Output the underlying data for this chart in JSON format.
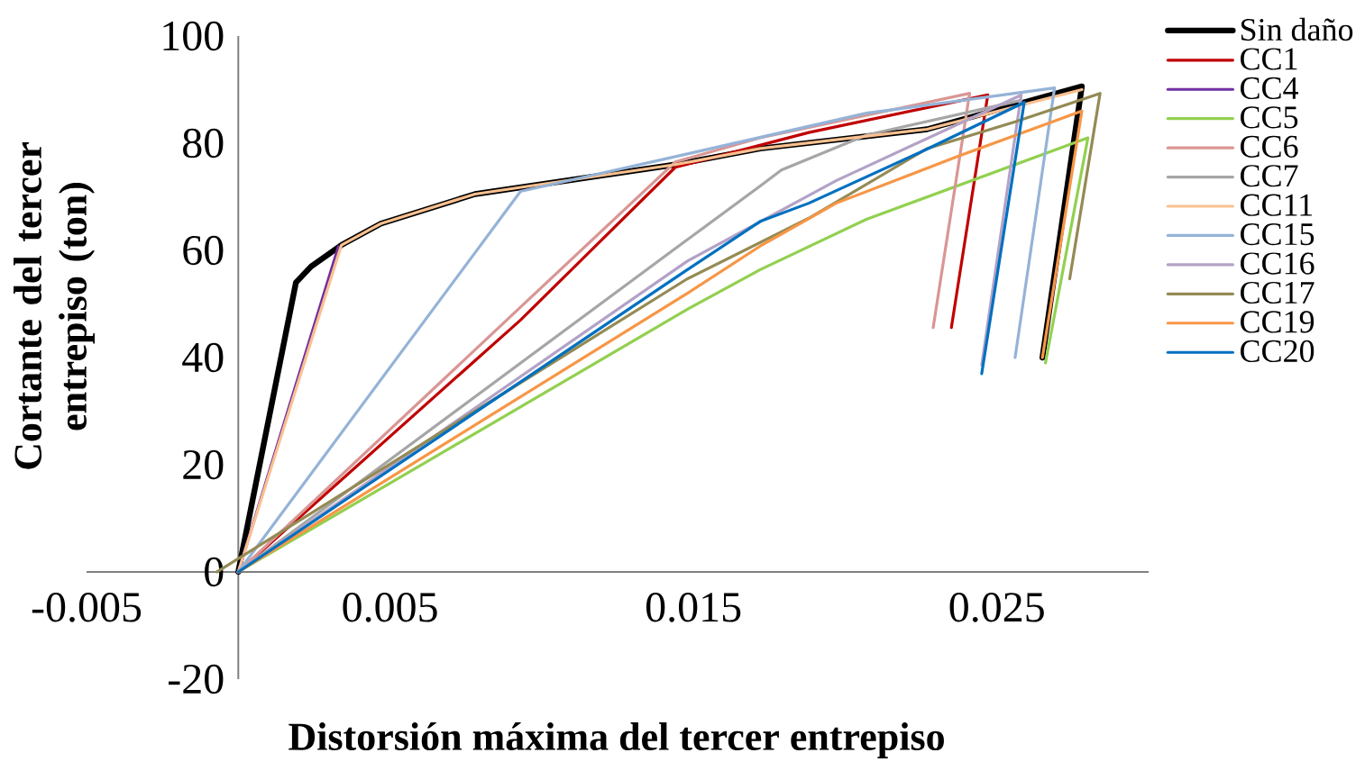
{
  "chart_data": {
    "type": "line",
    "xlabel": "Distorsión máxima del tercer entrepiso",
    "ylabel": "Cortante del tercer entrepiso (ton)",
    "xlim": [
      -0.005,
      0.03
    ],
    "ylim": [
      -20,
      100
    ],
    "xticks": [
      -0.005,
      0.005,
      0.015,
      0.025
    ],
    "yticks": [
      -20,
      0,
      20,
      40,
      60,
      80,
      100
    ],
    "legend": "right",
    "series": [
      {
        "name": "Sin daño",
        "color": "#000000",
        "x": [
          0,
          0.0019,
          0.0024,
          0.0034,
          0.0047,
          0.0078,
          0.0144,
          0.0172,
          0.0227,
          0.0278,
          0.0265
        ],
        "values": [
          0,
          54,
          57,
          61,
          65,
          70.5,
          76,
          79,
          82.6,
          90.6,
          40
        ]
      },
      {
        "name": "CC1",
        "color": "#c00000",
        "x": [
          0,
          0.0093,
          0.0144,
          0.0188,
          0.0247,
          0.0235
        ],
        "values": [
          0,
          47,
          75.5,
          82,
          89,
          45.6
        ]
      },
      {
        "name": "CC4",
        "color": "#7030a0",
        "x": [
          0,
          0.0033
        ],
        "values": [
          0,
          60.7
        ]
      },
      {
        "name": "CC5",
        "color": "#92d050",
        "x": [
          0,
          0.0148,
          0.0172,
          0.0207,
          0.028,
          0.0266
        ],
        "values": [
          0,
          49,
          56.4,
          65.8,
          81,
          39
        ]
      },
      {
        "name": "CC6",
        "color": "#d99694",
        "x": [
          0,
          0.0144,
          0.0172,
          0.0241,
          0.0229
        ],
        "values": [
          0,
          76.5,
          81,
          89.3,
          45.6
        ]
      },
      {
        "name": "CC7",
        "color": "#a6a6a6",
        "x": [
          0,
          0.0148,
          0.0172,
          0.0179,
          0.0207,
          0.0258
        ],
        "values": [
          0,
          62,
          72,
          75,
          81.5,
          88
        ]
      },
      {
        "name": "CC11",
        "color": "#fac090",
        "x": [
          0,
          0.0034,
          0.0047,
          0.0078,
          0.0144,
          0.0172,
          0.0227,
          0.0278
        ],
        "values": [
          0,
          61,
          65,
          70.5,
          76,
          79,
          82.6,
          90
        ]
      },
      {
        "name": "CC15",
        "color": "#95b3d7",
        "x": [
          0,
          0.0093,
          0.0148,
          0.0207,
          0.0269,
          0.0256
        ],
        "values": [
          0,
          71,
          78,
          85.6,
          90.3,
          40
        ]
      },
      {
        "name": "CC16",
        "color": "#b3a2c7",
        "x": [
          0,
          0.0148,
          0.0197,
          0.0258,
          0.0245
        ],
        "values": [
          0,
          58,
          73,
          89,
          38.6
        ]
      },
      {
        "name": "CC17",
        "color": "#948a54",
        "x": [
          -0.0007,
          0.0148,
          0.0188,
          0.0227,
          0.0256,
          0.0284,
          0.0274
        ],
        "values": [
          0,
          54.7,
          66,
          79,
          84,
          89.3,
          54.7
        ]
      },
      {
        "name": "CC19",
        "color": "#f79646",
        "x": [
          0,
          0.0148,
          0.0172,
          0.0197,
          0.0237,
          0.0278,
          0.0265
        ],
        "values": [
          0,
          52,
          60.8,
          68.8,
          77.5,
          86,
          40
        ]
      },
      {
        "name": "CC20",
        "color": "#0070c0",
        "x": [
          0,
          0.0148,
          0.0172,
          0.0188,
          0.0227,
          0.0259,
          0.0245
        ],
        "values": [
          0,
          56.4,
          65.4,
          68.8,
          78.9,
          87.6,
          37
        ]
      }
    ]
  }
}
